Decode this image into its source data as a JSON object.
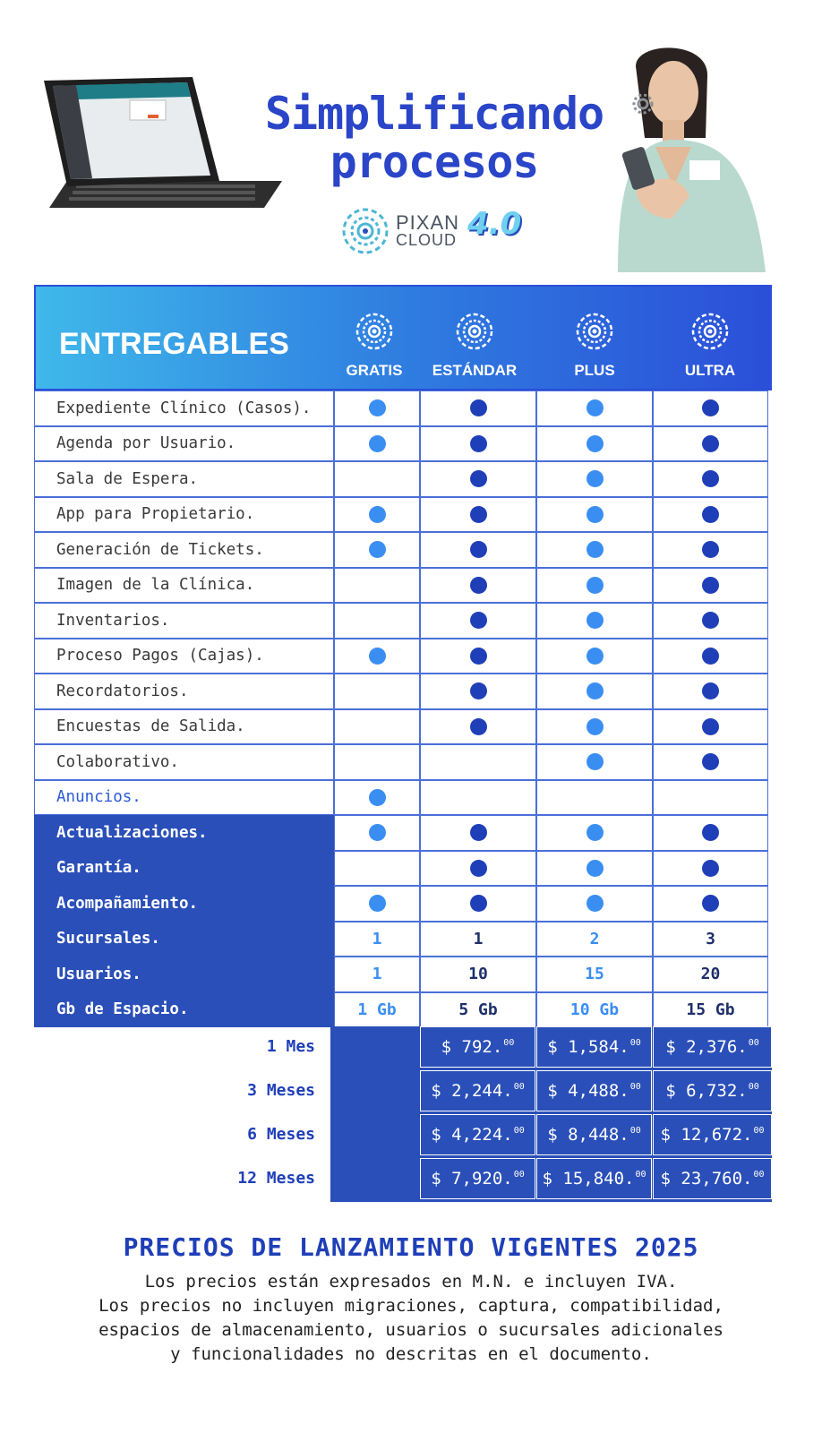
{
  "header": {
    "title_line1": "Simplificando",
    "title_line2": "procesos",
    "brand_name": "PIXAN",
    "brand_sub": "CLOUD",
    "brand_version": "4.0"
  },
  "table": {
    "heading": "ENTREGABLES",
    "plans": [
      "GRATIS",
      "ESTÁNDAR",
      "PLUS",
      "ULTRA"
    ],
    "feature_rows": [
      {
        "label": "Expediente Clínico (Casos).",
        "marks": [
          true,
          true,
          true,
          true
        ]
      },
      {
        "label": "Agenda por Usuario.",
        "marks": [
          true,
          true,
          true,
          true
        ]
      },
      {
        "label": "Sala de Espera.",
        "marks": [
          false,
          true,
          true,
          true
        ]
      },
      {
        "label": "App para Propietario.",
        "marks": [
          true,
          true,
          true,
          true
        ]
      },
      {
        "label": "Generación de Tickets.",
        "marks": [
          true,
          true,
          true,
          true
        ]
      },
      {
        "label": "Imagen de la Clínica.",
        "marks": [
          false,
          true,
          true,
          true
        ]
      },
      {
        "label": "Inventarios.",
        "marks": [
          false,
          true,
          true,
          true
        ]
      },
      {
        "label": "Proceso Pagos (Cajas).",
        "marks": [
          true,
          true,
          true,
          true
        ]
      },
      {
        "label": "Recordatorios.",
        "marks": [
          false,
          true,
          true,
          true
        ]
      },
      {
        "label": "Encuestas de Salida.",
        "marks": [
          false,
          true,
          true,
          true
        ]
      },
      {
        "label": "Colaborativo.",
        "marks": [
          false,
          false,
          true,
          true
        ]
      },
      {
        "label": "Anuncios.",
        "marks": [
          true,
          false,
          false,
          false
        ]
      }
    ],
    "service_rows": [
      {
        "label": "Actualizaciones.",
        "marks": [
          true,
          true,
          true,
          true
        ]
      },
      {
        "label": "Garantía.",
        "marks": [
          false,
          true,
          true,
          true
        ]
      },
      {
        "label": "Acompañamiento.",
        "marks": [
          true,
          true,
          true,
          true
        ]
      }
    ],
    "value_rows": [
      {
        "label": "Sucursales.",
        "values": [
          "1",
          "1",
          "2",
          "3"
        ]
      },
      {
        "label": "Usuarios.",
        "values": [
          "1",
          "10",
          "15",
          "20"
        ]
      },
      {
        "label": "Gb de Espacio.",
        "values": [
          "1 Gb",
          "5 Gb",
          "10 Gb",
          "15 Gb"
        ]
      }
    ]
  },
  "pricing": {
    "periods": [
      "1 Mes",
      "3 Meses",
      "6 Meses",
      "12 Meses"
    ],
    "prices": [
      [
        "$ 792.",
        "$ 1,584.",
        "$ 2,376."
      ],
      [
        "$ 2,244.",
        "$ 4,488.",
        "$ 6,732."
      ],
      [
        "$ 4,224.",
        "$ 8,448.",
        "$ 12,672."
      ],
      [
        "$ 7,920.",
        "$ 15,840.",
        "$ 23,760."
      ]
    ],
    "cents": "00"
  },
  "footer": {
    "title": "PRECIOS DE LANZAMIENTO VIGENTES 2025",
    "lines": [
      "Los precios están expresados en M.N. e incluyen IVA.",
      "Los precios no incluyen migraciones, captura, compatibilidad,",
      "espacios de almacenamiento, usuarios o sucursales adicionales",
      "y funcionalidades no descritas en el documento."
    ]
  },
  "colors": {
    "brand_blue": "#2a45c8",
    "dark_blue": "#2a4fb8",
    "dot_light": "#3a8ef2",
    "dot_dark": "#1f3fb8",
    "header_gradient_start": "#3fb8ea"
  }
}
